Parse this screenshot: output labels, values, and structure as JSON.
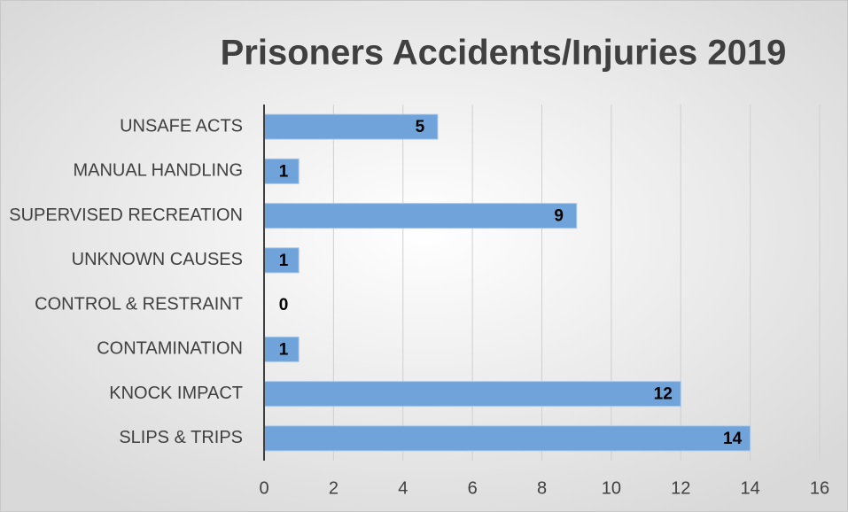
{
  "chart_data": {
    "type": "bar",
    "orientation": "horizontal",
    "title": "Prisoners Accidents/Injuries 2019",
    "categories": [
      "UNSAFE ACTS",
      "MANUAL HANDLING",
      "SUPERVISED RECREATION",
      "UNKNOWN CAUSES",
      "CONTROL & RESTRAINT",
      "CONTAMINATION",
      "KNOCK IMPACT",
      "SLIPS & TRIPS"
    ],
    "values": [
      5,
      1,
      9,
      1,
      0,
      1,
      12,
      14
    ],
    "color": "#6fa3d9",
    "xlim": [
      0,
      16
    ],
    "xticks": [
      0,
      2,
      4,
      6,
      8,
      10,
      12,
      14,
      16
    ],
    "grid": true
  }
}
